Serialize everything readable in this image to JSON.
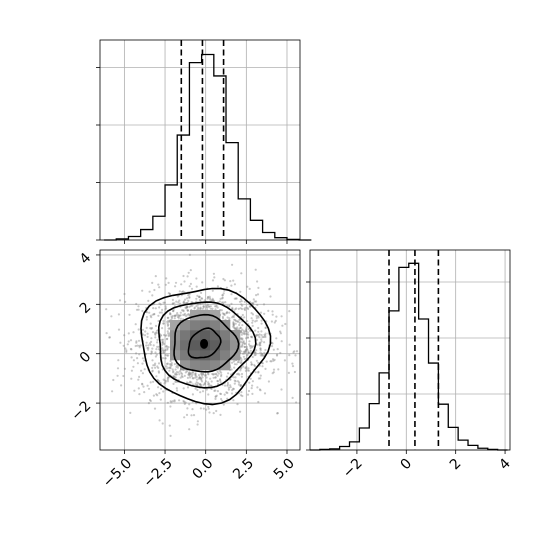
{
  "chart_data": [
    {
      "type": "histogram",
      "panel": "x-marginal",
      "bin_edges": [
        -6.25,
        -5.5,
        -4.75,
        -4.0,
        -3.25,
        -2.5,
        -1.75,
        -1.0,
        -0.25,
        0.5,
        1.25,
        2.0,
        2.75,
        3.5,
        4.25,
        5.0,
        5.75,
        6.5
      ],
      "counts": [
        0,
        2,
        6,
        18,
        41,
        95,
        181,
        306,
        320,
        283,
        168,
        71,
        34,
        13,
        4,
        1,
        0
      ],
      "quantile_lines": [
        -1.5,
        -0.2,
        1.1
      ],
      "xlim": [
        -6.5,
        5.8
      ],
      "ylim": [
        0,
        345
      ],
      "grid": true,
      "x_ticks_shown": false,
      "y_tick_labels_shown": false
    },
    {
      "type": "heatmap",
      "panel": "joint-2d",
      "subtype": "2d-density-with-contours",
      "x_ticks": [
        -5.0,
        -2.5,
        0.0,
        2.5,
        5.0
      ],
      "x_tick_labels": [
        "−5.0",
        "−2.5",
        "0.0",
        "2.5",
        "5.0"
      ],
      "y_ticks": [
        -2,
        0,
        2,
        4
      ],
      "y_tick_labels": [
        "−2",
        "0",
        "2",
        "4"
      ],
      "xlim": [
        -6.5,
        5.8
      ],
      "ylim": [
        -3.9,
        4.2
      ],
      "peak": {
        "x": -0.1,
        "y": 0.4
      },
      "scatter_spread": {
        "sx": 2.0,
        "sy": 1.1
      },
      "contour_levels": [
        "0.5-sigma",
        "1-sigma",
        "1.5-sigma",
        "2-sigma"
      ],
      "grid": true
    },
    {
      "type": "histogram",
      "panel": "y-marginal",
      "bin_edges": [
        -3.9,
        -3.5,
        -3.1,
        -2.7,
        -2.3,
        -1.9,
        -1.5,
        -1.1,
        -0.7,
        -0.3,
        0.1,
        0.5,
        0.9,
        1.3,
        1.7,
        2.1,
        2.5,
        2.9,
        3.3,
        3.7,
        4.1
      ],
      "counts": [
        0,
        1,
        2,
        6,
        14,
        38,
        80,
        133,
        240,
        315,
        322,
        226,
        150,
        79,
        39,
        17,
        8,
        3,
        1,
        0
      ],
      "quantile_lines": [
        -0.7,
        0.35,
        1.3
      ],
      "xlim": [
        -3.9,
        4.2
      ],
      "ylim": [
        0,
        345
      ],
      "x_ticks": [
        -2,
        0,
        2,
        4
      ],
      "x_tick_labels": [
        "−2",
        "0",
        "2",
        "4"
      ],
      "grid": true,
      "y_tick_labels_shown": false
    }
  ]
}
